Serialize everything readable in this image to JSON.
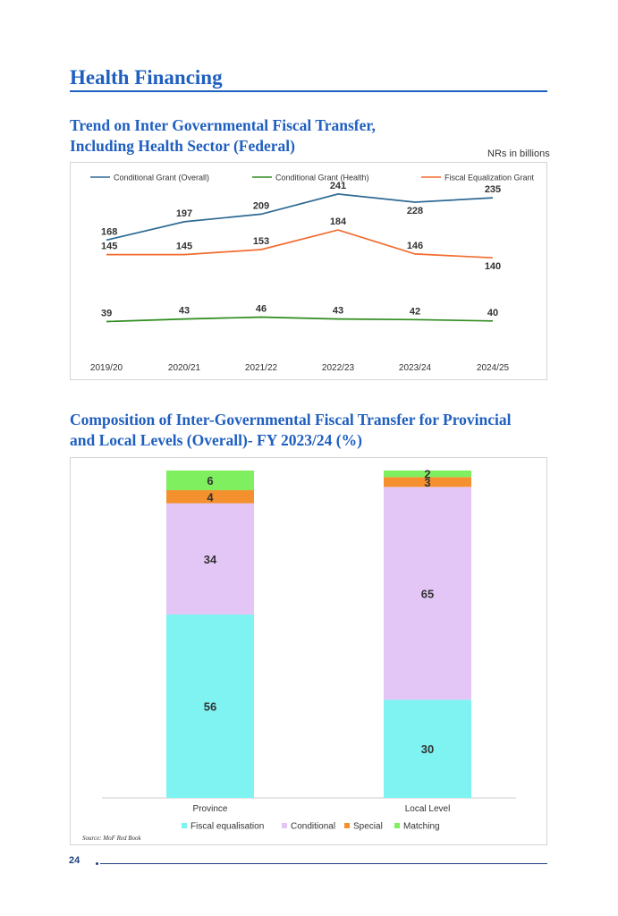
{
  "page": {
    "section_title": "Health Financing",
    "page_number": "24",
    "source": "Source: MoF Red Book"
  },
  "chart1": {
    "title_line1": "Trend on Inter Governmental Fiscal Transfer,",
    "title_line2": "Including Health Sector (Federal)",
    "unit_note": "NRs in billions"
  },
  "chart2": {
    "title_line1": "Composition of Inter-Governmental Fiscal Transfer for Provincial",
    "title_line2": "and Local Levels (Overall)- FY 2023/24 (%)"
  },
  "colors": {
    "overall": "#2e6a93",
    "health": "#2e8b1e",
    "equalization": "#f26b2e",
    "fiscal_equalisation": "#7ff2f2",
    "conditional": "#e3c6f6",
    "special": "#f4902e",
    "matching": "#7fef5f"
  },
  "chart_data": [
    {
      "type": "line",
      "title": "Trend on Inter Governmental Fiscal Transfer, Including Health Sector (Federal)",
      "ylabel": "NRs in billions",
      "legend_position": "top",
      "categories": [
        "2019/20",
        "2020/21",
        "2021/22",
        "2022/23",
        "2023/24",
        "2024/25"
      ],
      "ylim": [
        0,
        260
      ],
      "series": [
        {
          "name": "Conditional Grant (Overall)",
          "color": "#2e6a93",
          "values": [
            168,
            197,
            209,
            241,
            228,
            235
          ]
        },
        {
          "name": "Conditional Grant (Health)",
          "color": "#2e8b1e",
          "values": [
            39,
            43,
            46,
            43,
            42,
            40
          ]
        },
        {
          "name": "Fiscal Equalization Grant",
          "color": "#f26b2e",
          "values": [
            145,
            145,
            153,
            184,
            146,
            140
          ]
        }
      ]
    },
    {
      "type": "bar",
      "stacked": true,
      "title": "Composition of Inter-Governmental Fiscal Transfer for Provincial and Local Levels (Overall)- FY 2023/24 (%)",
      "legend_position": "bottom",
      "categories": [
        "Province",
        "Local Level"
      ],
      "ylim": [
        0,
        100
      ],
      "series": [
        {
          "name": "Fiscal equalisation",
          "color": "#7ff2f2",
          "values": [
            56,
            30
          ]
        },
        {
          "name": "Conditional",
          "color": "#e3c6f6",
          "values": [
            34,
            65
          ]
        },
        {
          "name": "Special",
          "color": "#f4902e",
          "values": [
            4,
            3
          ]
        },
        {
          "name": "Matching",
          "color": "#7fef5f",
          "values": [
            6,
            2
          ]
        }
      ]
    }
  ]
}
